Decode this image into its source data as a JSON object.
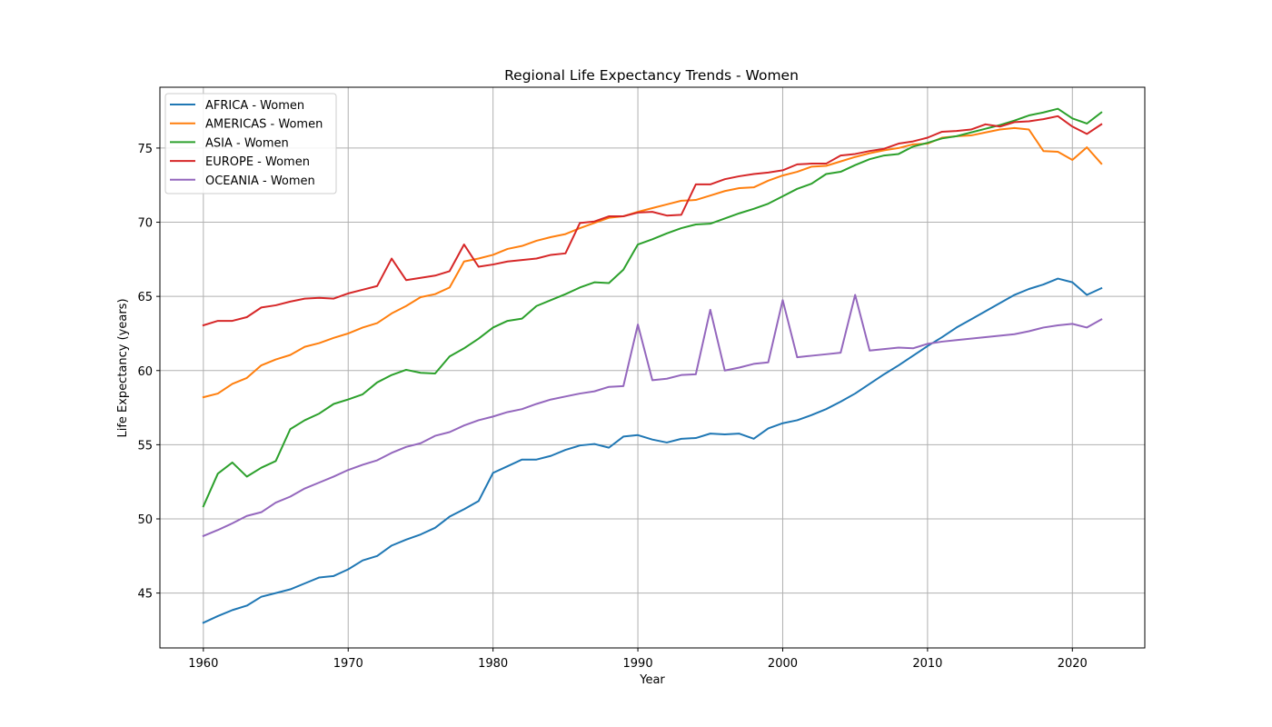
{
  "chart_data": {
    "type": "line",
    "title": "Regional Life Expectancy Trends - Women",
    "xlabel": "Year",
    "ylabel": "Life Expectancy (years)",
    "xlim": [
      1957,
      2025
    ],
    "ylim": [
      41.3,
      79.1
    ],
    "xticks": [
      1960,
      1970,
      1980,
      1990,
      2000,
      2010,
      2020
    ],
    "yticks": [
      45,
      50,
      55,
      60,
      65,
      70,
      75
    ],
    "grid": true,
    "legend_position": "upper-left",
    "x": [
      1960,
      1961,
      1962,
      1963,
      1964,
      1965,
      1966,
      1967,
      1968,
      1969,
      1970,
      1971,
      1972,
      1973,
      1974,
      1975,
      1976,
      1977,
      1978,
      1979,
      1980,
      1981,
      1982,
      1983,
      1984,
      1985,
      1986,
      1987,
      1988,
      1989,
      1990,
      1991,
      1992,
      1993,
      1994,
      1995,
      1996,
      1997,
      1998,
      1999,
      2000,
      2001,
      2002,
      2003,
      2004,
      2005,
      2006,
      2007,
      2008,
      2009,
      2010,
      2011,
      2012,
      2013,
      2014,
      2015,
      2016,
      2017,
      2018,
      2019,
      2020,
      2021,
      2022
    ],
    "series": [
      {
        "name": "AFRICA - Women",
        "color": "#1f77b4",
        "values": [
          43.0,
          43.45,
          43.85,
          44.15,
          44.75,
          45.0,
          45.25,
          45.65,
          46.05,
          46.15,
          46.6,
          47.2,
          47.5,
          48.2,
          48.6,
          48.95,
          49.4,
          50.15,
          50.65,
          51.2,
          53.1,
          53.55,
          54.0,
          54.0,
          54.25,
          54.65,
          54.95,
          55.05,
          54.8,
          55.55,
          55.65,
          55.35,
          55.15,
          55.4,
          55.45,
          55.75,
          55.7,
          55.75,
          55.4,
          56.1,
          56.45,
          56.65,
          57.0,
          57.4,
          57.9,
          58.45,
          59.1,
          59.75,
          60.35,
          61.0,
          61.65,
          62.25,
          62.9,
          63.45,
          64.0,
          64.55,
          65.1,
          65.5,
          65.8,
          66.2,
          65.95,
          65.1,
          65.55
        ]
      },
      {
        "name": "AMERICAS - Women",
        "color": "#ff7f0e",
        "values": [
          58.2,
          58.45,
          59.1,
          59.5,
          60.35,
          60.75,
          61.05,
          61.6,
          61.85,
          62.2,
          62.5,
          62.9,
          63.2,
          63.85,
          64.35,
          64.95,
          65.15,
          65.6,
          67.35,
          67.55,
          67.8,
          68.2,
          68.4,
          68.75,
          69.0,
          69.2,
          69.6,
          69.95,
          70.3,
          70.4,
          70.7,
          70.95,
          71.2,
          71.45,
          71.5,
          71.8,
          72.1,
          72.3,
          72.35,
          72.8,
          73.15,
          73.4,
          73.75,
          73.8,
          74.1,
          74.4,
          74.65,
          74.85,
          75.0,
          75.25,
          75.3,
          75.7,
          75.8,
          75.85,
          76.05,
          76.25,
          76.35,
          76.25,
          74.8,
          74.75,
          74.2,
          75.05,
          73.95
        ]
      },
      {
        "name": "ASIA - Women",
        "color": "#2ca02c",
        "values": [
          50.85,
          53.05,
          53.8,
          52.85,
          53.45,
          53.9,
          56.05,
          56.65,
          57.1,
          57.75,
          58.05,
          58.4,
          59.2,
          59.7,
          60.05,
          59.85,
          59.8,
          60.95,
          61.5,
          62.15,
          62.9,
          63.35,
          63.5,
          64.35,
          64.75,
          65.15,
          65.6,
          65.95,
          65.9,
          66.8,
          68.5,
          68.85,
          69.25,
          69.6,
          69.85,
          69.9,
          70.25,
          70.6,
          70.9,
          71.25,
          71.75,
          72.25,
          72.6,
          73.25,
          73.4,
          73.85,
          74.25,
          74.5,
          74.6,
          75.1,
          75.35,
          75.65,
          75.8,
          76.05,
          76.3,
          76.55,
          76.85,
          77.2,
          77.4,
          77.65,
          77.0,
          76.65,
          77.4
        ]
      },
      {
        "name": "EUROPE - Women",
        "color": "#d62728",
        "values": [
          63.05,
          63.35,
          63.35,
          63.6,
          64.25,
          64.4,
          64.65,
          64.85,
          64.9,
          64.85,
          65.2,
          65.45,
          65.7,
          67.55,
          66.1,
          66.25,
          66.4,
          66.7,
          68.5,
          67.0,
          67.15,
          67.35,
          67.45,
          67.55,
          67.8,
          67.9,
          69.95,
          70.05,
          70.4,
          70.4,
          70.65,
          70.7,
          70.45,
          70.5,
          72.55,
          72.55,
          72.9,
          73.1,
          73.25,
          73.35,
          73.5,
          73.9,
          73.95,
          73.95,
          74.5,
          74.6,
          74.8,
          74.95,
          75.3,
          75.45,
          75.7,
          76.1,
          76.15,
          76.25,
          76.6,
          76.45,
          76.75,
          76.8,
          76.95,
          77.15,
          76.45,
          75.95,
          76.6
        ]
      },
      {
        "name": "OCEANIA - Women",
        "color": "#9467bd",
        "values": [
          48.85,
          49.25,
          49.7,
          50.2,
          50.45,
          51.1,
          51.5,
          52.05,
          52.45,
          52.85,
          53.3,
          53.65,
          53.95,
          54.45,
          54.85,
          55.1,
          55.6,
          55.85,
          56.3,
          56.65,
          56.9,
          57.2,
          57.4,
          57.75,
          58.05,
          58.25,
          58.45,
          58.6,
          58.9,
          58.95,
          63.1,
          59.35,
          59.45,
          59.7,
          59.75,
          64.1,
          60.0,
          60.2,
          60.45,
          60.55,
          64.75,
          60.9,
          61.0,
          61.1,
          61.2,
          65.1,
          61.35,
          61.45,
          61.55,
          61.5,
          61.8,
          61.95,
          62.05,
          62.15,
          62.25,
          62.35,
          62.45,
          62.65,
          62.9,
          63.05,
          63.15,
          62.9,
          63.45
        ]
      }
    ]
  }
}
